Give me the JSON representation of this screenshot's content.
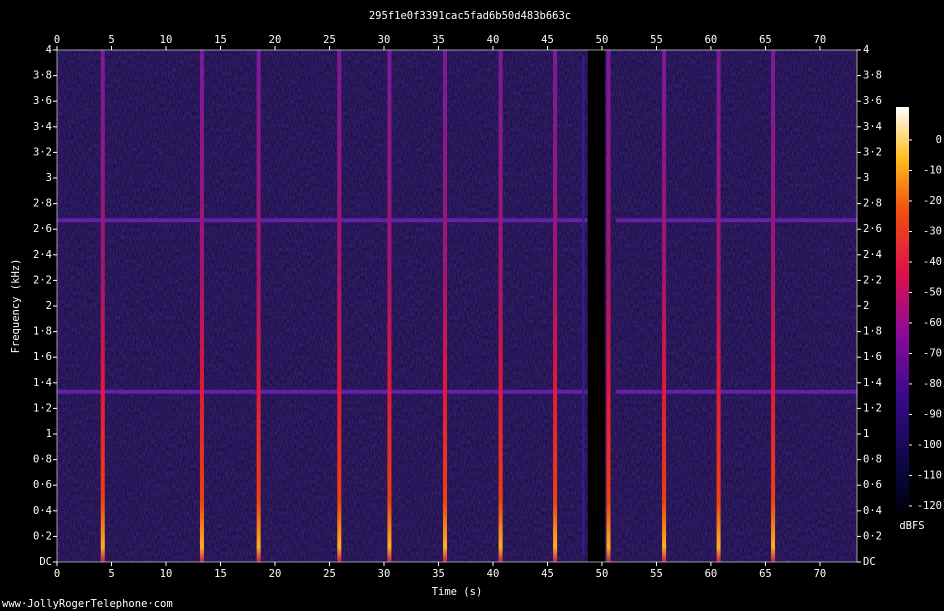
{
  "chart_data": {
    "type": "spectrogram",
    "title": "295f1e0f3391cac5fad6b50d483b663c",
    "xlabel": "Time (s)",
    "ylabel": "Frequency (kHz)",
    "footer": "www·JollyRogerTelephone·com",
    "xlim": [
      0,
      73.4
    ],
    "ylim": [
      0,
      4
    ],
    "xticks": [
      0,
      5,
      10,
      15,
      20,
      25,
      30,
      35,
      40,
      45,
      50,
      55,
      60,
      65,
      70
    ],
    "yticks": [
      {
        "value": 0,
        "label": "DC"
      },
      {
        "value": 0.2,
        "label": "0·2"
      },
      {
        "value": 0.4,
        "label": "0·4"
      },
      {
        "value": 0.6,
        "label": "0·6"
      },
      {
        "value": 0.8,
        "label": "0·8"
      },
      1,
      {
        "value": 1.2,
        "label": "1·2"
      },
      {
        "value": 1.4,
        "label": "1·4"
      },
      {
        "value": 1.6,
        "label": "1·6"
      },
      {
        "value": 1.8,
        "label": "1·8"
      },
      2,
      {
        "value": 2.2,
        "label": "2·2"
      },
      {
        "value": 2.4,
        "label": "2·4"
      },
      {
        "value": 2.6,
        "label": "2·6"
      },
      {
        "value": 2.8,
        "label": "2·8"
      },
      3,
      {
        "value": 3.2,
        "label": "3·2"
      },
      {
        "value": 3.4,
        "label": "3·4"
      },
      {
        "value": 3.6,
        "label": "3·6"
      },
      {
        "value": 3.8,
        "label": "3·8"
      },
      4
    ],
    "events": [
      4.2,
      13.3,
      18.5,
      25.9,
      30.5,
      35.6,
      40.7,
      45.7,
      50.6,
      55.7,
      60.7,
      65.7
    ],
    "faint_events": [
      48.3
    ],
    "tones": [
      1.33,
      2.67
    ],
    "dropout": [
      48.7,
      51.3
    ],
    "colorbar": {
      "label": "dBFS",
      "lim": [
        -124.6,
        10.8
      ],
      "ticks": [
        0,
        -10,
        -20,
        -30,
        -40,
        -50,
        -60,
        -70,
        -80,
        -90,
        -100,
        -110,
        -120
      ]
    }
  }
}
